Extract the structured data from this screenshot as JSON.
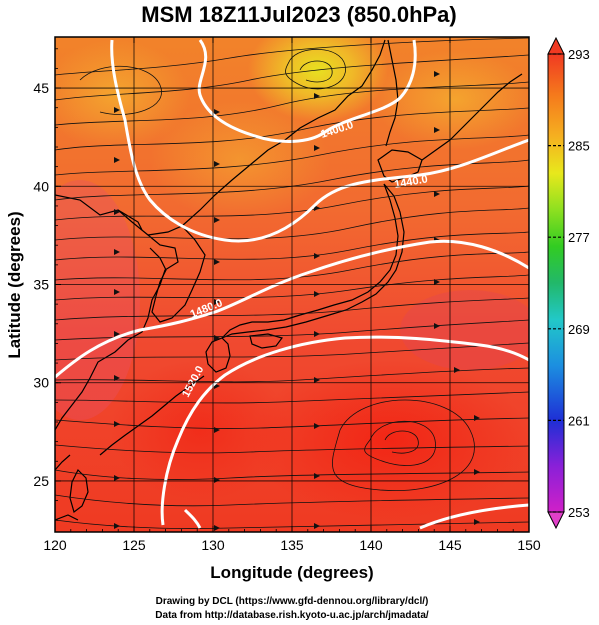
{
  "title": "MSM 18Z11Jul2023 (850.0hPa)",
  "x_axis": {
    "label": "Longitude (degrees)",
    "ticks": [
      "120",
      "125",
      "130",
      "135",
      "140",
      "145",
      "150"
    ],
    "range": [
      120,
      150
    ]
  },
  "y_axis": {
    "label": "Latitude  (degrees)",
    "ticks": [
      "25",
      "30",
      "35",
      "40",
      "45"
    ],
    "range": [
      22.4,
      47.6
    ]
  },
  "colorbar": {
    "ticks": [
      "293",
      "285",
      "277",
      "269",
      "261",
      "253"
    ],
    "range": [
      253,
      293
    ],
    "colors": [
      "#d020c8",
      "#8a20d8",
      "#1e2fd6",
      "#1c8fe0",
      "#22c8c8",
      "#22b86a",
      "#32cc22",
      "#8ee020",
      "#e8e81c",
      "#f5b020",
      "#f57a1c",
      "#f03a22"
    ]
  },
  "contours": [
    {
      "label": "1400.0"
    },
    {
      "label": "1440.0"
    },
    {
      "label": "1480.0"
    },
    {
      "label": "1520.0"
    }
  ],
  "credits": {
    "line1": "Drawing by DCL (https://www.gfd-dennou.org/library/dcl/)",
    "line2": "Data from http://database.rish.kyoto-u.ac.jp/arch/jmadata/"
  }
}
